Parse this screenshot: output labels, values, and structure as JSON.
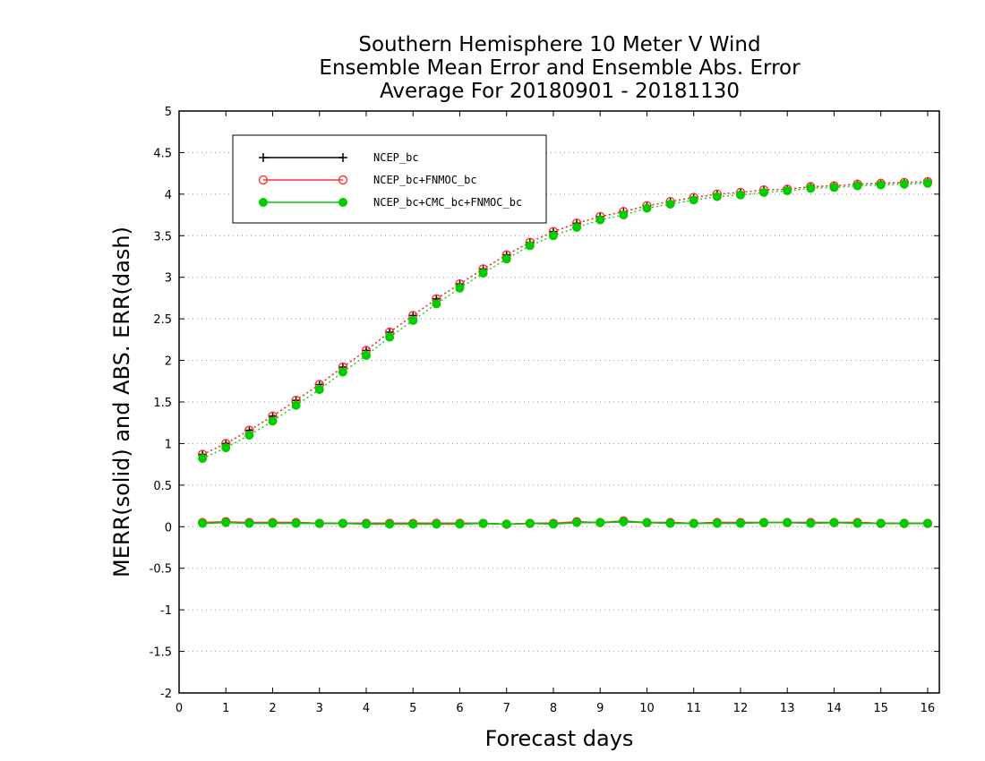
{
  "chart_data": {
    "type": "line",
    "title": [
      "Southern Hemisphere 10 Meter V Wind",
      "Ensemble Mean Error and Ensemble Abs. Error",
      "Average For 20180901 - 20181130"
    ],
    "xlabel": "Forecast days",
    "ylabel": "MERR(solid) and ABS. ERR(dash)",
    "xlim": [
      0,
      16.25
    ],
    "ylim": [
      -2,
      5
    ],
    "xticks": [
      0,
      1,
      2,
      3,
      4,
      5,
      6,
      7,
      8,
      9,
      10,
      11,
      12,
      13,
      14,
      15,
      16
    ],
    "yticks": [
      -2,
      -1.5,
      -1,
      -0.5,
      0,
      0.5,
      1,
      1.5,
      2,
      2.5,
      3,
      3.5,
      4,
      4.5,
      5
    ],
    "ytick_labels": [
      "-2",
      "-1.5",
      "-1",
      "-0.5",
      "0",
      "0.5",
      "1",
      "1.5",
      "2",
      "2.5",
      "3",
      "3.5",
      "4",
      "4.5",
      "5"
    ],
    "grid": "horizontal dotted",
    "legend_position": "top-left",
    "x": [
      0.5,
      1,
      1.5,
      2,
      2.5,
      3,
      3.5,
      4,
      4.5,
      5,
      5.5,
      6,
      6.5,
      7,
      7.5,
      8,
      8.5,
      9,
      9.5,
      10,
      10.5,
      11,
      11.5,
      12,
      12.5,
      13,
      13.5,
      14,
      14.5,
      15,
      15.5,
      16
    ],
    "series": [
      {
        "name": "NCEP_bc",
        "color": "#000000",
        "marker": "plus",
        "merr": [
          0.05,
          0.05,
          0.05,
          0.05,
          0.05,
          0.04,
          0.04,
          0.04,
          0.04,
          0.04,
          0.04,
          0.04,
          0.04,
          0.03,
          0.04,
          0.04,
          0.05,
          0.05,
          0.06,
          0.05,
          0.05,
          0.04,
          0.05,
          0.05,
          0.05,
          0.05,
          0.05,
          0.05,
          0.05,
          0.04,
          0.04,
          0.04
        ],
        "abs_err": [
          0.87,
          1.0,
          1.16,
          1.33,
          1.52,
          1.71,
          1.92,
          2.12,
          2.34,
          2.54,
          2.74,
          2.92,
          3.1,
          3.27,
          3.42,
          3.55,
          3.65,
          3.73,
          3.79,
          3.86,
          3.91,
          3.96,
          4.0,
          4.02,
          4.05,
          4.06,
          4.09,
          4.1,
          4.12,
          4.13,
          4.14,
          4.15
        ]
      },
      {
        "name": "NCEP_bc+FNMOC_bc",
        "color": "#ff3333",
        "marker": "open-circle",
        "merr": [
          0.05,
          0.06,
          0.05,
          0.05,
          0.05,
          0.04,
          0.04,
          0.04,
          0.04,
          0.04,
          0.04,
          0.04,
          0.04,
          0.03,
          0.04,
          0.04,
          0.06,
          0.05,
          0.07,
          0.05,
          0.05,
          0.04,
          0.05,
          0.05,
          0.05,
          0.05,
          0.05,
          0.05,
          0.05,
          0.04,
          0.04,
          0.04
        ],
        "abs_err": [
          0.87,
          1.0,
          1.16,
          1.33,
          1.52,
          1.71,
          1.92,
          2.12,
          2.34,
          2.54,
          2.74,
          2.92,
          3.1,
          3.27,
          3.42,
          3.55,
          3.65,
          3.73,
          3.79,
          3.86,
          3.91,
          3.96,
          4.0,
          4.02,
          4.05,
          4.06,
          4.09,
          4.1,
          4.12,
          4.13,
          4.14,
          4.15
        ]
      },
      {
        "name": "NCEP_bc+CMC_bc+FNMOC_bc",
        "color": "#00cc00",
        "marker": "filled-circle",
        "merr": [
          0.04,
          0.05,
          0.04,
          0.04,
          0.04,
          0.04,
          0.04,
          0.03,
          0.03,
          0.03,
          0.03,
          0.03,
          0.04,
          0.03,
          0.04,
          0.03,
          0.05,
          0.05,
          0.06,
          0.05,
          0.04,
          0.04,
          0.04,
          0.04,
          0.05,
          0.05,
          0.04,
          0.05,
          0.04,
          0.04,
          0.04,
          0.04
        ],
        "abs_err": [
          0.82,
          0.95,
          1.1,
          1.27,
          1.46,
          1.65,
          1.86,
          2.06,
          2.28,
          2.48,
          2.68,
          2.87,
          3.05,
          3.22,
          3.38,
          3.5,
          3.6,
          3.69,
          3.75,
          3.83,
          3.88,
          3.93,
          3.97,
          3.99,
          4.02,
          4.04,
          4.07,
          4.08,
          4.1,
          4.11,
          4.12,
          4.13
        ]
      }
    ]
  }
}
